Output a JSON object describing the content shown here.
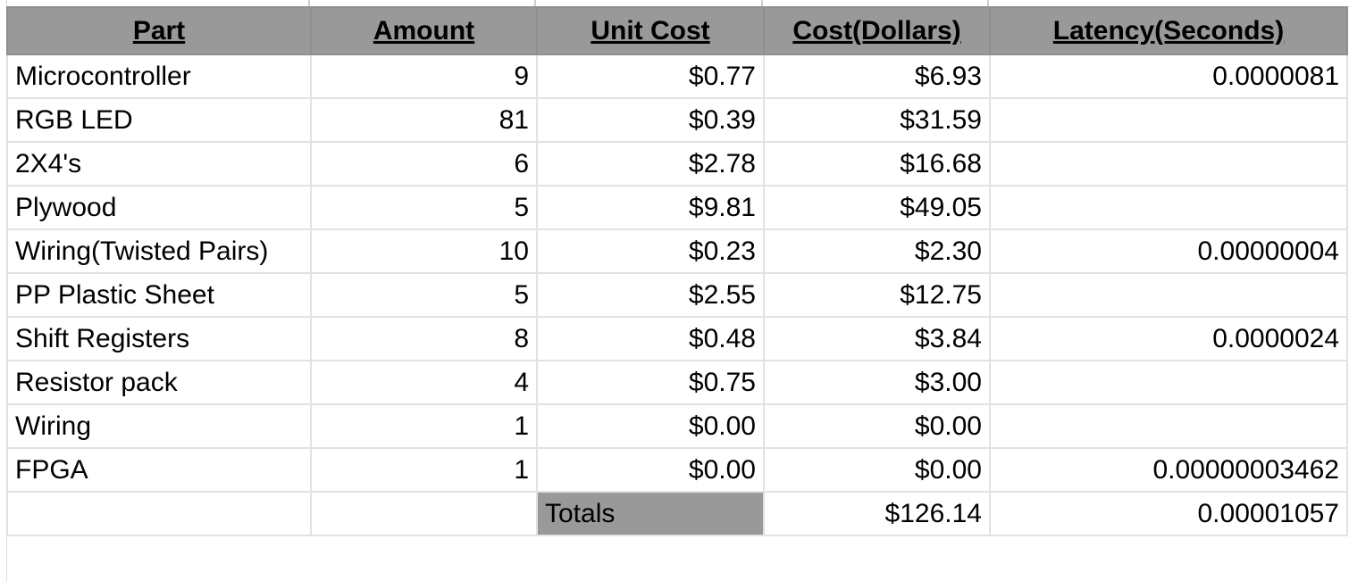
{
  "columns": [
    "Part",
    "Amount",
    "Unit Cost",
    "Cost(Dollars)",
    "Latency(Seconds)"
  ],
  "rows": [
    {
      "part": "Microcontroller",
      "amount": "9",
      "unit_cost": "$0.77",
      "cost": "$6.93",
      "latency": "0.0000081"
    },
    {
      "part": "RGB LED",
      "amount": "81",
      "unit_cost": "$0.39",
      "cost": "$31.59",
      "latency": ""
    },
    {
      "part": "2X4's",
      "amount": "6",
      "unit_cost": "$2.78",
      "cost": "$16.68",
      "latency": ""
    },
    {
      "part": "Plywood",
      "amount": "5",
      "unit_cost": "$9.81",
      "cost": "$49.05",
      "latency": ""
    },
    {
      "part": "Wiring(Twisted Pairs)",
      "amount": "10",
      "unit_cost": "$0.23",
      "cost": "$2.30",
      "latency": "0.00000004"
    },
    {
      "part": "PP Plastic Sheet",
      "amount": "5",
      "unit_cost": "$2.55",
      "cost": "$12.75",
      "latency": ""
    },
    {
      "part": "Shift Registers",
      "amount": "8",
      "unit_cost": "$0.48",
      "cost": "$3.84",
      "latency": "0.0000024"
    },
    {
      "part": "Resistor pack",
      "amount": "4",
      "unit_cost": "$0.75",
      "cost": "$3.00",
      "latency": ""
    },
    {
      "part": "Wiring",
      "amount": "1",
      "unit_cost": "$0.00",
      "cost": "$0.00",
      "latency": ""
    },
    {
      "part": "FPGA",
      "amount": "1",
      "unit_cost": "$0.00",
      "cost": "$0.00",
      "latency": "0.00000003462"
    }
  ],
  "totals": {
    "label": "Totals",
    "cost": "$126.14",
    "latency": "0.00001057"
  },
  "colors": {
    "header_fill": "#999999",
    "gridline": "#e2e2e2"
  }
}
